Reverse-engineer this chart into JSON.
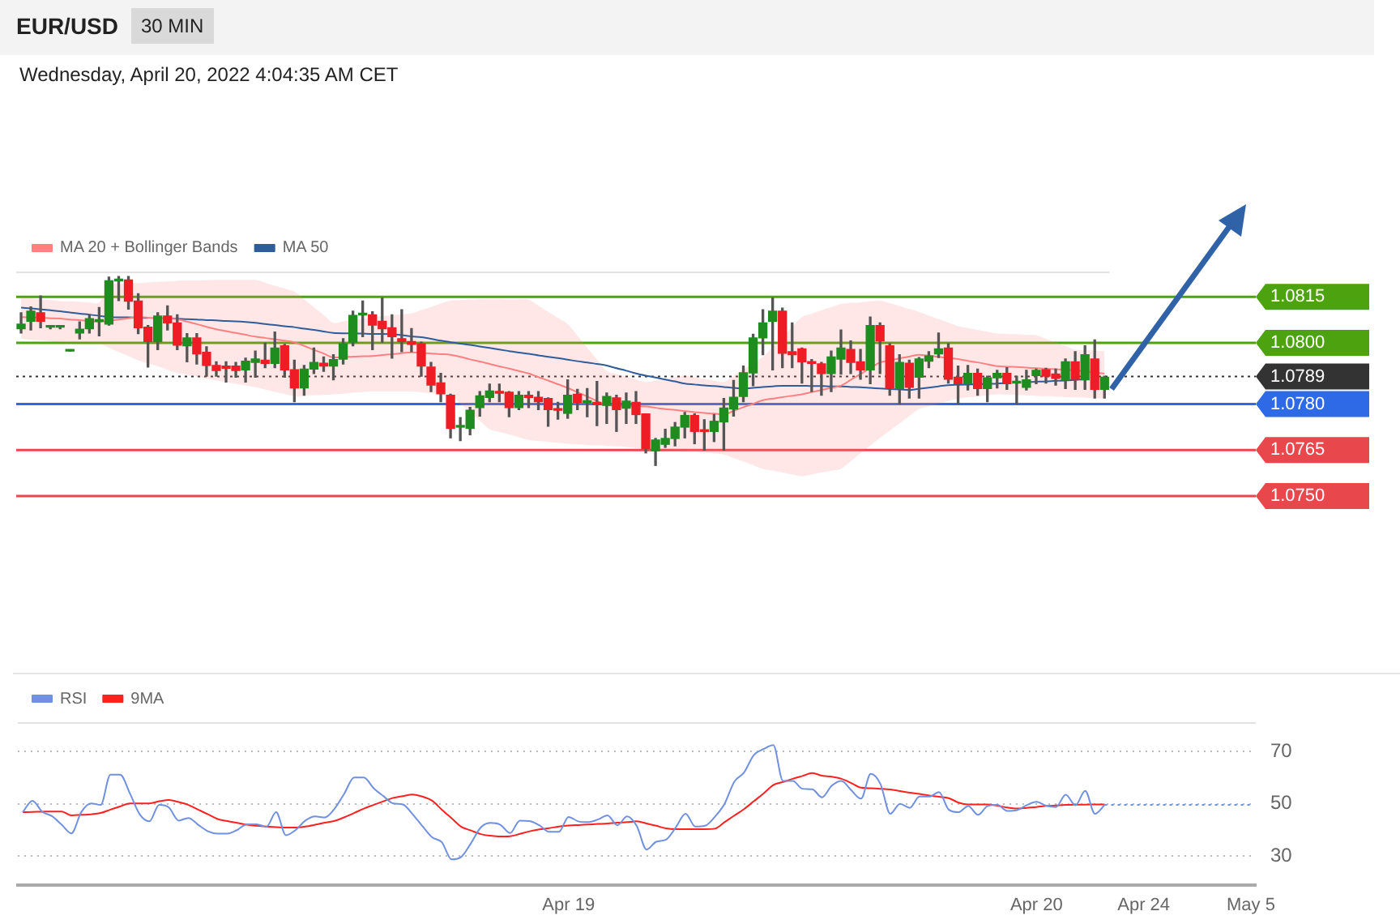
{
  "chart_data": [
    {
      "type": "candlestick",
      "title": "EUR/USD",
      "subtitle": "Wednesday, April 20, 2022 4:04:35 AM CET",
      "annotations": [
        "30 MIN"
      ],
      "categories": [
        null,
        null,
        null,
        null,
        null,
        null,
        null,
        null,
        null,
        null,
        null,
        null,
        null,
        null,
        null,
        null,
        null,
        null,
        null,
        null,
        null,
        null,
        null,
        null,
        null,
        null,
        null,
        null,
        null,
        null,
        null,
        null,
        null,
        null,
        null,
        null,
        null,
        null,
        null,
        null,
        null,
        null,
        null,
        null,
        null,
        null,
        null,
        null,
        null,
        null,
        null,
        null,
        null,
        null,
        null,
        null,
        null,
        null,
        null,
        null,
        null,
        null,
        null,
        null,
        null,
        null,
        null,
        null,
        null,
        null,
        null,
        null,
        null,
        null,
        null,
        null,
        null,
        null,
        null,
        null,
        null,
        null,
        null,
        null,
        null,
        null,
        null,
        null,
        null,
        null,
        null,
        null,
        null,
        null,
        null,
        null,
        null,
        null,
        null,
        null,
        null,
        null,
        null,
        null,
        null,
        null,
        null,
        null,
        null,
        null,
        null,
        null
      ],
      "ohlc": [
        [
          1.08046,
          1.08098,
          1.08032,
          1.08061
        ],
        [
          1.0807,
          1.08117,
          1.08042,
          1.08103
        ],
        [
          1.08098,
          1.08153,
          1.08049,
          1.0807
        ],
        [
          1.08051,
          1.08056,
          1.08046,
          1.08051
        ],
        [
          1.08051,
          1.08056,
          1.08046,
          1.08051
        ],
        [
          1.07973,
          1.07973,
          1.07973,
          1.07973
        ],
        [
          1.08032,
          1.08068,
          1.08013,
          1.08044
        ],
        [
          1.08046,
          1.08091,
          1.08032,
          1.08079
        ],
        [
          1.0807,
          1.08115,
          1.08023,
          1.0807
        ],
        [
          1.08061,
          1.08214,
          1.08058,
          1.08202
        ],
        [
          1.08202,
          1.08216,
          1.08138,
          1.08205
        ],
        [
          1.08205,
          1.08216,
          1.0811,
          1.08136
        ],
        [
          1.08136,
          1.0816,
          1.0803,
          1.08049
        ],
        [
          1.08051,
          1.08056,
          1.07921,
          1.08004
        ],
        [
          1.08004,
          1.08098,
          1.07978,
          1.08087
        ],
        [
          1.08087,
          1.0812,
          1.08042,
          1.08065
        ],
        [
          1.08065,
          1.08091,
          1.07978,
          1.07992
        ],
        [
          1.0799,
          1.0803,
          1.07938,
          1.08016
        ],
        [
          1.08016,
          1.0803,
          1.07931,
          1.07964
        ],
        [
          1.07969,
          1.07987,
          1.07891,
          1.07926
        ],
        [
          1.07926,
          1.07938,
          1.07891,
          1.0791
        ],
        [
          1.07924,
          1.07938,
          1.07872,
          1.07917
        ],
        [
          1.07924,
          1.07936,
          1.07888,
          1.0791
        ],
        [
          1.07912,
          1.0795,
          1.07872,
          1.0794
        ],
        [
          1.07936,
          1.07973,
          1.07888,
          1.07947
        ],
        [
          1.07943,
          1.07999,
          1.07919,
          1.07933
        ],
        [
          1.07933,
          1.08035,
          1.07919,
          1.07983
        ],
        [
          1.0799,
          1.07995,
          1.07888,
          1.07912
        ],
        [
          1.07912,
          1.07943,
          1.07808,
          1.07853
        ],
        [
          1.07853,
          1.07926,
          1.07829,
          1.07914
        ],
        [
          1.07914,
          1.07983,
          1.079,
          1.07936
        ],
        [
          1.07933,
          1.07954,
          1.07907,
          1.07924
        ],
        [
          1.07924,
          1.07961,
          1.07879,
          1.07945
        ],
        [
          1.07947,
          1.08013,
          1.07931,
          1.07997
        ],
        [
          1.08002,
          1.08103,
          1.0799,
          1.08089
        ],
        [
          1.08091,
          1.08136,
          1.0802,
          1.08091
        ],
        [
          1.08091,
          1.08101,
          1.07978,
          1.08058
        ],
        [
          1.0807,
          1.08146,
          1.08002,
          1.08046
        ],
        [
          1.08049,
          1.08091,
          1.0795,
          1.0802
        ],
        [
          1.08013,
          1.08108,
          1.07971,
          1.08004
        ],
        [
          1.08004,
          1.08046,
          1.07971,
          1.07995
        ],
        [
          1.07997,
          1.08002,
          1.07891,
          1.07924
        ],
        [
          1.07921,
          1.07936,
          1.07841,
          1.07862
        ],
        [
          1.07869,
          1.079,
          1.07808,
          1.07834
        ],
        [
          1.07829,
          1.07832,
          1.0769,
          1.07721
        ],
        [
          1.07725,
          1.07756,
          1.07681,
          1.07725
        ],
        [
          1.07721,
          1.07789,
          1.077,
          1.0778
        ],
        [
          1.07789,
          1.07841,
          1.07761,
          1.07827
        ],
        [
          1.07822,
          1.07865,
          1.07808,
          1.07843
        ],
        [
          1.07841,
          1.07865,
          1.07808,
          1.07836
        ],
        [
          1.07839,
          1.07841,
          1.07759,
          1.07789
        ],
        [
          1.07789,
          1.07841,
          1.07782,
          1.07829
        ],
        [
          1.07829,
          1.07841,
          1.07789,
          1.07822
        ],
        [
          1.07822,
          1.07841,
          1.07782,
          1.07808
        ],
        [
          1.07818,
          1.0782,
          1.07728,
          1.07782
        ],
        [
          1.07782,
          1.07806,
          1.07751,
          1.0778
        ],
        [
          1.0777,
          1.07879,
          1.07754,
          1.07829
        ],
        [
          1.07832,
          1.07848,
          1.07782,
          1.07806
        ],
        [
          1.07806,
          1.07851,
          1.07759,
          1.07806
        ],
        [
          1.07806,
          1.07874,
          1.0773,
          1.07799
        ],
        [
          1.07796,
          1.07836,
          1.07737,
          1.07825
        ],
        [
          1.0782,
          1.07829,
          1.07711,
          1.07782
        ],
        [
          1.07787,
          1.07836,
          1.07737,
          1.0781
        ],
        [
          1.07806,
          1.07841,
          1.07737,
          1.07766
        ],
        [
          1.07768,
          1.07768,
          1.07641,
          1.07655
        ],
        [
          1.07648,
          1.07688,
          1.076,
          1.07683
        ],
        [
          1.07669,
          1.07718,
          1.07659,
          1.07688
        ],
        [
          1.07688,
          1.0774,
          1.07664,
          1.07725
        ],
        [
          1.07725,
          1.07773,
          1.0769,
          1.07763
        ],
        [
          1.07763,
          1.07768,
          1.07671,
          1.07711
        ],
        [
          1.07716,
          1.07749,
          1.0765,
          1.07711
        ],
        [
          1.07711,
          1.07766,
          1.07678,
          1.07744
        ],
        [
          1.07742,
          1.07818,
          1.0765,
          1.07787
        ],
        [
          1.07784,
          1.07877,
          1.07761,
          1.07822
        ],
        [
          1.07825,
          1.07924,
          1.07808,
          1.07902
        ],
        [
          1.07902,
          1.08028,
          1.0786,
          1.08016
        ],
        [
          1.08016,
          1.08108,
          1.07961,
          1.08065
        ],
        [
          1.0807,
          1.08146,
          1.07912,
          1.08103
        ],
        [
          1.08103,
          1.08113,
          1.07919,
          1.07966
        ],
        [
          1.07971,
          1.08065,
          1.07919,
          1.07961
        ],
        [
          1.0798,
          1.07983,
          1.07869,
          1.07938
        ],
        [
          1.07936,
          1.07945,
          1.07841,
          1.07933
        ],
        [
          1.07931,
          1.07936,
          1.07829,
          1.079
        ],
        [
          1.079,
          1.07973,
          1.07841,
          1.07954
        ],
        [
          1.07947,
          1.08042,
          1.07898,
          1.07983
        ],
        [
          1.07978,
          1.08006,
          1.079,
          1.07936
        ],
        [
          1.07938,
          1.07978,
          1.07881,
          1.07912
        ],
        [
          1.07912,
          1.08084,
          1.07867,
          1.08056
        ],
        [
          1.08056,
          1.08065,
          1.079,
          1.08006
        ],
        [
          1.0799,
          1.07997,
          1.07829,
          1.07853
        ],
        [
          1.07851,
          1.07961,
          1.07801,
          1.07936
        ],
        [
          1.07933,
          1.07943,
          1.0782,
          1.07855
        ],
        [
          1.07888,
          1.07952,
          1.0782,
          1.07947
        ],
        [
          1.0794,
          1.07971,
          1.07919,
          1.07957
        ],
        [
          1.07964,
          1.08032,
          1.07952,
          1.0798
        ],
        [
          1.07983,
          1.07997,
          1.07869,
          1.07881
        ],
        [
          1.07888,
          1.07924,
          1.07801,
          1.07867
        ],
        [
          1.07867,
          1.07926,
          1.07846,
          1.079
        ],
        [
          1.079,
          1.07914,
          1.07829,
          1.07851
        ],
        [
          1.07851,
          1.07891,
          1.07808,
          1.07886
        ],
        [
          1.07886,
          1.0791,
          1.07853,
          1.079
        ],
        [
          1.079,
          1.07919,
          1.07848,
          1.07867
        ],
        [
          1.07869,
          1.07891,
          1.07801,
          1.07869
        ],
        [
          1.07855,
          1.0791,
          1.07846,
          1.07879
        ],
        [
          1.07893,
          1.07914,
          1.07867,
          1.0791
        ],
        [
          1.07912,
          1.07917,
          1.07869,
          1.07891
        ],
        [
          1.07898,
          1.07914,
          1.07862,
          1.07884
        ],
        [
          1.07879,
          1.07947,
          1.07851,
          1.07938
        ],
        [
          1.07938,
          1.07971,
          1.07848,
          1.07881
        ],
        [
          1.07879,
          1.0799,
          1.07848,
          1.07961
        ],
        [
          1.07947,
          1.08009,
          1.0782,
          1.07848
        ],
        [
          1.07848,
          1.07891,
          1.0782,
          1.07888
        ]
      ],
      "series": [
        {
          "name": "MA 20 + Bollinger Bands",
          "type": "line",
          "color": "#ff8080",
          "values": [
            1.08084,
            1.08083,
            1.08082,
            1.0808,
            1.08079,
            1.08076,
            1.08074,
            1.08071,
            1.08068,
            1.08072,
            1.08076,
            1.0808,
            1.08084,
            1.08082,
            1.0808,
            1.08079,
            1.08077,
            1.08069,
            1.08061,
            1.08052,
            1.08044,
            1.08038,
            1.08032,
            1.08026,
            1.0802,
            1.08016,
            1.08011,
            1.08007,
            1.08002,
            1.0799,
            1.07977,
            1.07965,
            1.07952,
            1.07953,
            1.07955,
            1.07956,
            1.07957,
            1.0796,
            1.07963,
            1.07966,
            1.07969,
            1.07967,
            1.07965,
            1.07963,
            1.07961,
            1.07954,
            1.07946,
            1.07939,
            1.07931,
            1.07923,
            1.07916,
            1.07908,
            1.079,
            1.07888,
            1.07877,
            1.07865,
            1.07853,
            1.07839,
            1.07825,
            1.0781,
            1.07796,
            1.07795,
            1.07794,
            1.07793,
            1.07792,
            1.07788,
            1.07784,
            1.07781,
            1.07777,
            1.07774,
            1.07771,
            1.07769,
            1.07766,
            1.07778,
            1.0779,
            1.07801,
            1.07813,
            1.07818,
            1.07823,
            1.07827,
            1.07832,
            1.07839,
            1.07846,
            1.07853,
            1.0786,
            1.07879,
            1.07898,
            1.07917,
            1.07936,
            1.07942,
            1.07949,
            1.07955,
            1.07961,
            1.07958,
            1.07954,
            1.07951,
            1.07947,
            1.07941,
            1.07936,
            1.0793,
            1.07924,
            1.07922,
            1.07921,
            1.07919,
            1.07917,
            1.07915,
            1.07914,
            1.07912,
            1.0791,
            1.07907,
            1.07903,
            1.079
          ],
          "upper": [
            1.08148,
            1.08145,
            1.08142,
            1.08139,
            1.08136,
            1.08135,
            1.08134,
            1.08132,
            1.08131,
            1.08188,
            1.08193,
            1.08195,
            1.08195,
            1.08197,
            1.08199,
            1.082,
            1.08202,
            1.08203,
            1.08203,
            1.08204,
            1.08205,
            1.08205,
            1.08205,
            1.08205,
            1.08205,
            1.08196,
            1.08186,
            1.08177,
            1.08167,
            1.08142,
            1.08116,
            1.08091,
            1.08065,
            1.0807,
            1.08075,
            1.08079,
            1.08084,
            1.08087,
            1.0809,
            1.08093,
            1.08096,
            1.08107,
            1.08117,
            1.08128,
            1.08138,
            1.08139,
            1.08141,
            1.08142,
            1.08143,
            1.08143,
            1.08142,
            1.08142,
            1.08141,
            1.08121,
            1.08101,
            1.08081,
            1.08061,
            1.08023,
            1.07984,
            1.07946,
            1.07907,
            1.07898,
            1.0789,
            1.07881,
            1.07872,
            1.07877,
            1.07883,
            1.07888,
            1.07893,
            1.07888,
            1.07882,
            1.07877,
            1.07872,
            1.07893,
            1.07913,
            1.07934,
            1.07954,
            1.07987,
            1.08019,
            1.08052,
            1.08084,
            1.08095,
            1.08106,
            1.08116,
            1.08127,
            1.0813,
            1.08132,
            1.08135,
            1.08138,
            1.08129,
            1.0812,
            1.0811,
            1.08101,
            1.08089,
            1.08077,
            1.08066,
            1.08054,
            1.08048,
            1.08042,
            1.08036,
            1.0803,
            1.08029,
            1.08028,
            1.08026,
            1.08025,
            1.08013,
            1.08002,
            1.0799,
            1.07978,
            1.07976,
            1.07975,
            1.07973
          ],
          "lower": [
            1.08013,
            1.0801,
            1.08008,
            1.08005,
            1.08002,
            1.08001,
            1.08,
            1.07998,
            1.07997,
            1.07984,
            1.0797,
            1.07957,
            1.07943,
            1.07933,
            1.07923,
            1.07912,
            1.07902,
            1.07896,
            1.0789,
            1.07883,
            1.07877,
            1.07872,
            1.07866,
            1.07861,
            1.07855,
            1.07848,
            1.0784,
            1.07833,
            1.07825,
            1.07827,
            1.07829,
            1.0783,
            1.07832,
            1.07834,
            1.07837,
            1.07839,
            1.07841,
            1.07841,
            1.07841,
            1.07841,
            1.07841,
            1.07838,
            1.07835,
            1.07832,
            1.07829,
            1.07801,
            1.07774,
            1.07746,
            1.07718,
            1.07709,
            1.07701,
            1.07692,
            1.07683,
            1.0768,
            1.07677,
            1.07674,
            1.07671,
            1.07669,
            1.07667,
            1.07666,
            1.07664,
            1.07662,
            1.0766,
            1.07657,
            1.07655,
            1.07653,
            1.07652,
            1.0765,
            1.07648,
            1.07645,
            1.07642,
            1.07639,
            1.07636,
            1.07624,
            1.07613,
            1.07601,
            1.07589,
            1.07583,
            1.07577,
            1.07571,
            1.07565,
            1.07571,
            1.07577,
            1.07583,
            1.07589,
            1.07614,
            1.0764,
            1.07665,
            1.0769,
            1.07714,
            1.07737,
            1.07761,
            1.07784,
            1.07793,
            1.07801,
            1.0781,
            1.07818,
            1.07822,
            1.07825,
            1.07829,
            1.07832,
            1.07831,
            1.0783,
            1.07828,
            1.07827,
            1.07826,
            1.07825,
            1.07823,
            1.07822,
            1.07821,
            1.07819,
            1.07818
          ]
        },
        {
          "name": "MA 50",
          "type": "line",
          "color": "#2f5d9b",
          "values": [
            1.08115,
            1.08112,
            1.08109,
            1.08106,
            1.08103,
            1.08099,
            1.08095,
            1.08092,
            1.08088,
            1.08084,
            1.08083,
            1.08083,
            1.08082,
            1.08081,
            null,
            1.0808,
            1.08079,
            1.08077,
            1.08076,
            1.08074,
            1.08073,
            1.08071,
            1.0807,
            1.08068,
            1.08065,
            1.08061,
            1.08058,
            1.08054,
            1.08051,
            1.08046,
            1.08042,
            1.08037,
            1.08032,
            1.08031,
            1.08031,
            1.0803,
            1.08029,
            1.08029,
            1.08028,
            1.08025,
            1.08021,
            1.08018,
            1.08013,
            1.08007,
            1.08002,
            1.07997,
            1.07993,
            1.07988,
            1.07983,
            1.07978,
            1.07973,
            1.07968,
            1.07964,
            1.07959,
            1.07954,
            1.0795,
            1.07945,
            1.0794,
            1.07936,
            1.07931,
            1.07926,
            1.07917,
            1.07909,
            1.079,
            1.07893,
            1.07887,
            1.0788,
            1.07874,
            1.07867,
            1.07864,
            1.07861,
            1.07859,
            1.07856,
            1.07853,
            1.07851,
            1.07853,
            1.07856,
            1.07858,
            1.0786,
            1.0786,
            1.0786,
            1.07859,
            1.07859,
            1.07858,
            1.07858,
            1.07856,
            1.07855,
            1.07853,
            1.07851,
            1.07849,
            1.07848,
            1.07846,
            1.0785,
            1.07854,
            1.07858,
            1.07862,
            1.07863,
            1.07864,
            1.07865,
            1.07866,
            1.07867,
            1.07869,
            null,
            1.07872,
            1.07873,
            1.07874,
            1.07876,
            1.07877,
            1.07879,
            1.07881,
            null,
            null
          ]
        }
      ],
      "ylim": [
        1.075,
        1.0823
      ],
      "yticks": [
        {
          "value": 1.075,
          "label": "1.0750"
        },
        1.0765,
        {
          "value": 1.078,
          "label": "1.0780"
        },
        1.0789,
        {
          "value": 1.08,
          "label": "1.0800"
        },
        1.0815
      ],
      "tick_labels": "y",
      "legend": "top left",
      "ref_lines": [
        {
          "axis": "y",
          "value": 1.0815,
          "color": "#4ca30f"
        },
        {
          "axis": "y",
          "value": 1.08,
          "color": "#4ca30f"
        },
        {
          "axis": "y",
          "value": 1.0789,
          "color": "#333333",
          "line_style": "dotted"
        },
        {
          "axis": "y",
          "value": 1.078,
          "color": "#2f6ae6"
        },
        {
          "axis": "y",
          "value": 1.0765,
          "color": "#e8474c"
        },
        {
          "axis": "y",
          "value": 1.075,
          "color": "#e8474c"
        }
      ]
    },
    {
      "type": "line",
      "categories": [
        null,
        null,
        null,
        null,
        null,
        null,
        null,
        null,
        null,
        null,
        null,
        null,
        null,
        null,
        null,
        null,
        null,
        null,
        null,
        null,
        null,
        null,
        null,
        null,
        null,
        null,
        null,
        null,
        null,
        null,
        null,
        null,
        null,
        null,
        null,
        null,
        null,
        null,
        null,
        null,
        null,
        null,
        null,
        null,
        null,
        null,
        null,
        null,
        null,
        null,
        null,
        null,
        null,
        null,
        null,
        null,
        "Apr 19",
        null,
        null,
        null,
        null,
        null,
        null,
        null,
        null,
        null,
        null,
        null,
        null,
        null,
        null,
        null,
        null,
        null,
        null,
        null,
        null,
        null,
        null,
        null,
        null,
        null,
        null,
        null,
        null,
        null,
        null,
        null,
        null,
        null,
        null,
        null,
        null,
        null,
        null,
        null,
        null,
        null,
        null,
        null,
        null,
        null,
        null,
        null,
        "Apr 20",
        null,
        null,
        null,
        null,
        null,
        null,
        null,
        null,
        null,
        null,
        "Apr 24",
        null,
        null,
        null,
        null,
        null,
        null,
        null,
        null,
        null,
        null,
        "May 5"
      ],
      "series": [
        {
          "name": "RSI",
          "color": "#7090e0",
          "values": [
            46.8,
            51.2,
            47,
            45.3,
            42,
            38.7,
            46.8,
            50.2,
            49.6,
            61.2,
            61.2,
            54,
            46,
            43.3,
            49.6,
            48.6,
            43.6,
            44.6,
            42,
            39.5,
            38.6,
            38.6,
            40,
            42.2,
            42.2,
            41.2,
            46.8,
            38,
            40,
            43.6,
            45.2,
            44.8,
            48.2,
            54,
            60.1,
            60.1,
            56,
            53,
            50.2,
            49.8,
            46,
            41.5,
            37.2,
            35.3,
            28.7,
            29.7,
            35,
            41,
            42.7,
            42,
            38.8,
            43.6,
            43.4,
            41.8,
            39.3,
            39.3,
            45,
            43.3,
            43,
            44,
            45.6,
            41.8,
            45.2,
            41.5,
            32.5,
            35.5,
            36.3,
            41,
            46.2,
            41.3,
            41.6,
            45,
            50,
            58.5,
            62,
            68.7,
            71,
            72.5,
            58.8,
            58.8,
            55.8,
            55.6,
            52.5,
            57,
            58.8,
            55.2,
            52,
            61.5,
            57.6,
            46.2,
            50,
            48.5,
            52.8,
            52.8,
            54.5,
            47.8,
            46.8,
            49.2,
            45.8,
            49.2,
            49.6,
            47.3,
            47.6,
            49.5,
            50.8,
            49.3,
            48.8,
            53.5,
            49.5,
            55,
            46.2,
            49.6,
            null,
            null,
            null,
            null,
            null,
            null,
            null,
            null,
            null,
            null,
            null,
            null,
            null,
            null,
            null
          ]
        },
        {
          "name": "9MA",
          "color": "#ff2020",
          "values": [
            46.8,
            46.9,
            47,
            47.1,
            47.1,
            45.6,
            45.8,
            46,
            46.5,
            47.8,
            49,
            50.2,
            50.2,
            50.2,
            51,
            51.5,
            50.7,
            49.6,
            47.8,
            46,
            44.2,
            43.4,
            42.7,
            42,
            41.6,
            41.3,
            41.1,
            40.9,
            40.9,
            41.3,
            42,
            42.8,
            43.5,
            44.9,
            46.5,
            48.2,
            49.6,
            51,
            52.3,
            53,
            53.6,
            52.8,
            51.2,
            47.8,
            44.5,
            41.2,
            39.8,
            38.4,
            37.8,
            37.5,
            37.6,
            38.5,
            39.5,
            40.2,
            40.7,
            41.3,
            41.7,
            41.9,
            42.1,
            42.3,
            42.5,
            42.8,
            43,
            43.3,
            42.5,
            41.6,
            40.6,
            40.3,
            40.3,
            40.3,
            40.3,
            40.5,
            43,
            45.5,
            48,
            51,
            54,
            57.2,
            58.4,
            59.6,
            60.7,
            61.8,
            60.8,
            60.4,
            59.6,
            58,
            56.2,
            56,
            55.8,
            55.5,
            54.9,
            54.3,
            53.8,
            53.2,
            52.7,
            52.2,
            50.5,
            49.8,
            49.8,
            49.8,
            49.3,
            48.6,
            48.2,
            48.5,
            48.8,
            49.2,
            49.4,
            49.6,
            49.7,
            49.7,
            49.8,
            49.8,
            null,
            null,
            null,
            null,
            null,
            null,
            null,
            null,
            null,
            null,
            null,
            null,
            null,
            null,
            null
          ]
        },
        {
          "color": "#7090e0",
          "line_style": "dotted",
          "values": [
            null,
            null,
            null,
            null,
            null,
            null,
            null,
            null,
            null,
            null,
            null,
            null,
            null,
            null,
            null,
            null,
            null,
            null,
            null,
            null,
            null,
            null,
            null,
            null,
            null,
            null,
            null,
            null,
            null,
            null,
            null,
            null,
            null,
            null,
            null,
            null,
            null,
            null,
            null,
            null,
            null,
            null,
            null,
            null,
            null,
            null,
            null,
            null,
            null,
            null,
            null,
            null,
            null,
            null,
            null,
            null,
            null,
            null,
            null,
            null,
            null,
            null,
            null,
            null,
            null,
            null,
            null,
            null,
            null,
            null,
            null,
            null,
            null,
            null,
            null,
            null,
            null,
            null,
            null,
            null,
            null,
            null,
            null,
            null,
            null,
            null,
            null,
            null,
            null,
            null,
            null,
            null,
            null,
            null,
            null,
            null,
            null,
            null,
            null,
            null,
            null,
            null,
            null,
            null,
            null,
            null,
            null,
            null,
            null,
            null,
            null,
            49.6,
            49.6,
            49.6,
            49.6,
            49.6,
            49.6,
            49.6,
            49.6,
            49.6,
            49.6,
            49.6,
            49.6,
            49.6,
            49.6,
            49.6,
            49.6
          ]
        }
      ],
      "ylim": [
        19,
        81
      ],
      "yticks": [
        30,
        50,
        70
      ],
      "grid": "y",
      "legend": "top left"
    }
  ]
}
